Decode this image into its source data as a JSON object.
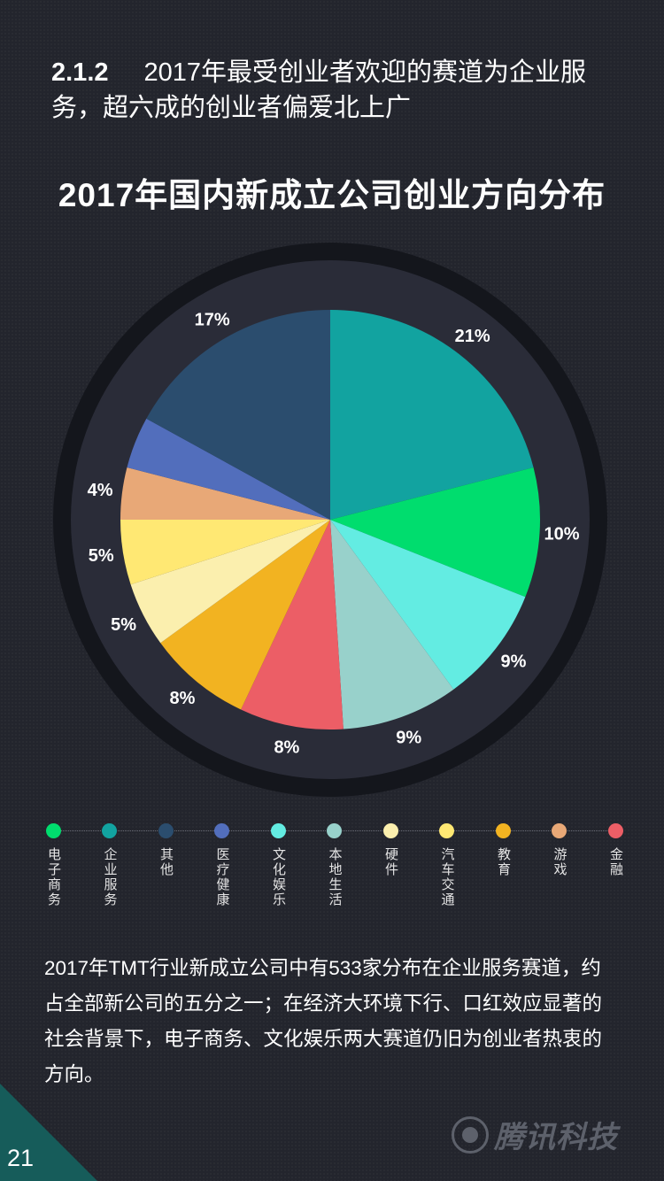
{
  "header": {
    "section_number": "2.1.2",
    "headline": "2017年最受创业者欢迎的赛道为企业服务，超六成的创业者偏爱北上广"
  },
  "chart_data": {
    "type": "pie",
    "title": "2017年国内新成立公司创业方向分布",
    "start_angle_deg": 0,
    "direction": "clockwise",
    "slices": [
      {
        "label": "企业服务",
        "value": 21,
        "display": "21%",
        "color": "#12a3a0"
      },
      {
        "label": "电子商务",
        "value": 10,
        "display": "10%",
        "color": "#00dd6e"
      },
      {
        "label": "文化娱乐",
        "value": 9,
        "display": "9%",
        "color": "#63ece2"
      },
      {
        "label": "本地生活",
        "value": 9,
        "display": "9%",
        "color": "#98d1cb"
      },
      {
        "label": "金融",
        "value": 8,
        "display": "8%",
        "color": "#ec5e66"
      },
      {
        "label": "教育",
        "value": 8,
        "display": "8%",
        "color": "#f2b321"
      },
      {
        "label": "硬件",
        "value": 5,
        "display": "5%",
        "color": "#fbefae"
      },
      {
        "label": "汽车交通",
        "value": 5,
        "display": "5%",
        "color": "#ffe873"
      },
      {
        "label": "游戏",
        "value": 4,
        "display": "4%",
        "color": "#e8a877"
      },
      {
        "label": "医疗健康",
        "value": 4,
        "display": "",
        "color": "#526ebc"
      },
      {
        "label": "其他",
        "value": 17,
        "display": "17%",
        "color": "#2b4d6e"
      }
    ]
  },
  "legend": [
    {
      "label": "电子商务",
      "color": "#00dd6e"
    },
    {
      "label": "企业服务",
      "color": "#12a3a0"
    },
    {
      "label": "其他",
      "color": "#2b4d6e"
    },
    {
      "label": "医疗健康",
      "color": "#526ebc"
    },
    {
      "label": "文化娱乐",
      "color": "#63ece2"
    },
    {
      "label": "本地生活",
      "color": "#98d1cb"
    },
    {
      "label": "硬件",
      "color": "#fbefae"
    },
    {
      "label": "汽车交通",
      "color": "#ffe873"
    },
    {
      "label": "教育",
      "color": "#f2b321"
    },
    {
      "label": "游戏",
      "color": "#e8a877"
    },
    {
      "label": "金融",
      "color": "#ec5e66"
    }
  ],
  "body_text": "2017年TMT行业新成立公司中有533家分布在企业服务赛道，约占全部新公司的五分之一；在经济大环境下行、口红效应显著的社会背景下，电子商务、文化娱乐两大赛道仍旧为创业者热衷的方向。",
  "footer": {
    "page_number": "21",
    "brand": "腾讯科技"
  },
  "colors": {
    "background": "#23252d",
    "ring_outer": "#14161c",
    "ring_inner": "#2a2c38"
  }
}
